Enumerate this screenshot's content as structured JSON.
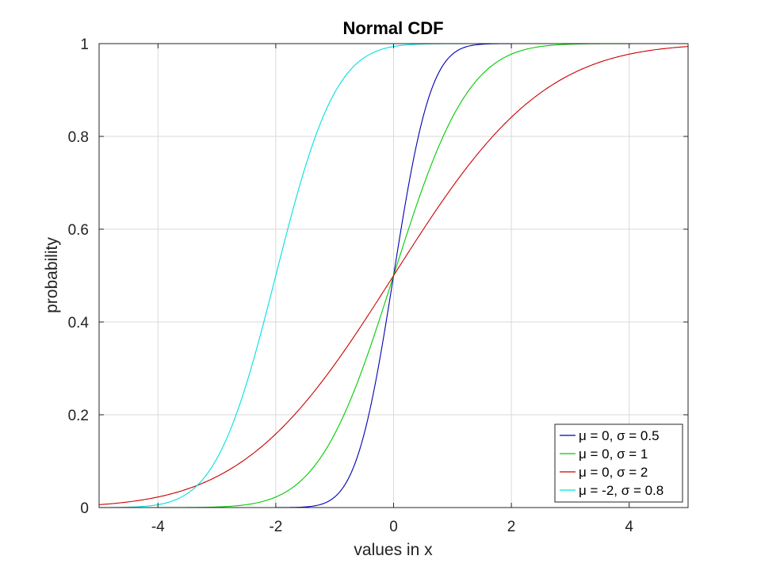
{
  "chart_data": {
    "type": "line",
    "title": "Normal CDF",
    "xlabel": "values in x",
    "ylabel": "probability",
    "xlim": [
      -5,
      5
    ],
    "ylim": [
      0,
      1
    ],
    "xticks": [
      -4,
      -2,
      0,
      2,
      4
    ],
    "yticks": [
      0,
      0.2,
      0.4,
      0.6,
      0.8,
      1
    ],
    "xtick_labels": [
      "-4",
      "-2",
      "0",
      "2",
      "4"
    ],
    "ytick_labels": [
      "0",
      "0.2",
      "0.4",
      "0.6",
      "0.8",
      "1"
    ],
    "grid": true,
    "legend_position": "bottom-right",
    "x": [
      -5,
      -4.5,
      -4,
      -3.5,
      -3,
      -2.5,
      -2,
      -1.5,
      -1,
      -0.5,
      0,
      0.5,
      1,
      1.5,
      2,
      2.5,
      3,
      3.5,
      4,
      4.5,
      5
    ],
    "series": [
      {
        "name": "μ = 0, σ = 0.5",
        "mu": 0,
        "sigma": 0.5,
        "color": "#0000b3",
        "values": [
          0,
          0,
          0,
          0,
          0,
          0,
          0,
          0.001,
          0.023,
          0.159,
          0.5,
          0.841,
          0.977,
          0.999,
          1,
          1,
          1,
          1,
          1,
          1,
          1
        ]
      },
      {
        "name": "μ = 0, σ = 1",
        "mu": 0,
        "sigma": 1,
        "color": "#00cc00",
        "values": [
          0,
          0,
          0,
          0,
          0.001,
          0.006,
          0.023,
          0.067,
          0.159,
          0.309,
          0.5,
          0.691,
          0.841,
          0.933,
          0.977,
          0.994,
          0.999,
          1,
          1,
          1,
          1
        ]
      },
      {
        "name": "μ = 0, σ = 2",
        "mu": 0,
        "sigma": 2,
        "color": "#cc0000",
        "values": [
          0.006,
          0.012,
          0.023,
          0.04,
          0.067,
          0.106,
          0.159,
          0.227,
          0.309,
          0.401,
          0.5,
          0.599,
          0.691,
          0.773,
          0.841,
          0.894,
          0.933,
          0.96,
          0.977,
          0.988,
          0.994
        ]
      },
      {
        "name": "μ = -2, σ = 0.8",
        "mu": -2,
        "sigma": 0.8,
        "color": "#00e0e0",
        "values": [
          0,
          0.001,
          0.006,
          0.03,
          0.106,
          0.266,
          0.5,
          0.734,
          0.894,
          0.97,
          0.994,
          0.999,
          1,
          1,
          1,
          1,
          1,
          1,
          1,
          1,
          1
        ]
      }
    ]
  }
}
